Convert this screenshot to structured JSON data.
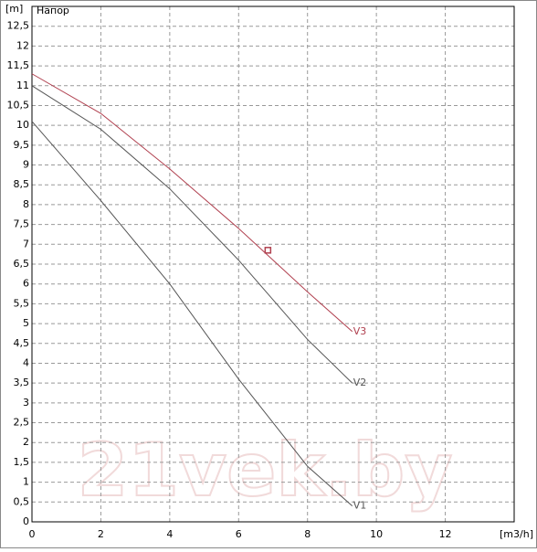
{
  "chart_data": {
    "type": "line",
    "title": "Напор",
    "y_label": "[m]",
    "x_label": "[m3/h]",
    "watermark": "21vek.by",
    "xlim": [
      0,
      14
    ],
    "ylim": [
      0,
      13
    ],
    "xticks": [
      0,
      2,
      4,
      6,
      8,
      10,
      12
    ],
    "yticks": [
      0,
      {
        "value": 0.5,
        "label": "0,5"
      },
      1,
      {
        "value": 1.5,
        "label": "1,5"
      },
      2,
      {
        "value": 2.5,
        "label": "2,5"
      },
      3,
      {
        "value": 3.5,
        "label": "3,5"
      },
      4,
      {
        "value": 4.5,
        "label": "4,5"
      },
      5,
      {
        "value": 5.5,
        "label": "5,5"
      },
      6,
      {
        "value": 6.5,
        "label": "6,5"
      },
      7,
      {
        "value": 7.5,
        "label": "7,5"
      },
      8,
      {
        "value": 8.5,
        "label": "8,5"
      },
      9,
      {
        "value": 9.5,
        "label": "9,5"
      },
      10,
      {
        "value": 10.5,
        "label": "10,5"
      },
      11,
      {
        "value": 11.5,
        "label": "11,5"
      },
      12,
      {
        "value": 12.5,
        "label": "12,5"
      }
    ],
    "grid": true,
    "series": [
      {
        "name": "V1",
        "color": "#555555",
        "x": [
          0,
          2,
          4,
          6,
          8,
          9.3
        ],
        "values": [
          10.1,
          8.1,
          6.0,
          3.6,
          1.4,
          0.4
        ]
      },
      {
        "name": "V2",
        "color": "#555555",
        "x": [
          0,
          2,
          4,
          6,
          8,
          9.3
        ],
        "values": [
          11.0,
          9.9,
          8.4,
          6.6,
          4.6,
          3.5
        ]
      },
      {
        "name": "V3",
        "color": "#b0404f",
        "x": [
          0,
          2,
          4,
          6,
          8,
          9.3
        ],
        "values": [
          11.3,
          10.3,
          8.9,
          7.4,
          5.8,
          4.8
        ]
      }
    ],
    "marker": {
      "x": 6.85,
      "y": 6.85,
      "color": "#b0404f"
    }
  }
}
